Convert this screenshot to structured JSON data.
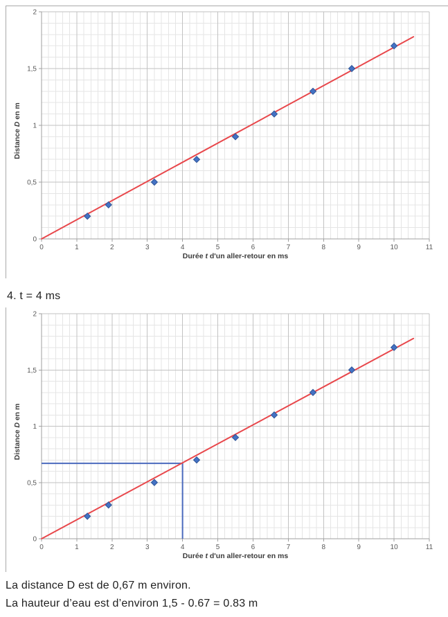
{
  "page": {
    "heading": "4. t = 4 ms",
    "caption_line1": "La distance D est de 0,67 m environ.",
    "caption_line2": "La hauteur d’eau est d’environ 1,5 - 0.67 = 0.83 m"
  },
  "chart_data": [
    {
      "type": "scatter",
      "title": "",
      "xlabel": {
        "pre": "Durée ",
        "em": "t",
        "post": " d'un aller-retour en ms"
      },
      "ylabel": {
        "pre": "Distance ",
        "em": "D",
        "post": " en m"
      },
      "xlim": [
        0,
        11
      ],
      "ylim": [
        0,
        2
      ],
      "x_major": 1,
      "x_minor": 0.2,
      "y_major": 0.5,
      "y_minor": 0.1,
      "x_ticks": [
        "0",
        "1",
        "2",
        "3",
        "4",
        "5",
        "6",
        "7",
        "8",
        "9",
        "10",
        "11"
      ],
      "y_ticks": [
        "0",
        "0,5",
        "1",
        "1,5",
        "2"
      ],
      "grid": "on",
      "legend": "none",
      "points": [
        [
          1.3,
          0.2
        ],
        [
          1.9,
          0.3
        ],
        [
          3.2,
          0.5
        ],
        [
          4.4,
          0.7
        ],
        [
          5.5,
          0.9
        ],
        [
          6.6,
          1.1
        ],
        [
          7.7,
          1.3
        ],
        [
          8.8,
          1.5
        ],
        [
          10,
          1.7
        ]
      ],
      "trendline": {
        "x1": 0,
        "y1": 0,
        "x2": 10.55,
        "y2": 1.78
      },
      "annotation": null,
      "colors": {
        "marker": "#4472c4",
        "marker_edge": "#2f5597",
        "trend": "#e8474b",
        "grid_major": "#c2c2c2",
        "grid_minor": "#e5e5e5",
        "axis": "#9f9f9f",
        "tick_label": "#595959",
        "axis_title": "#3b3b3b"
      }
    },
    {
      "type": "scatter",
      "title": "",
      "xlabel": {
        "pre": "Durée ",
        "em": "t",
        "post": " d'un aller-retour en ms"
      },
      "ylabel": {
        "pre": "Distance ",
        "em": "D",
        "post": " en m"
      },
      "xlim": [
        0,
        11
      ],
      "ylim": [
        0,
        2
      ],
      "x_major": 1,
      "x_minor": 0.2,
      "y_major": 0.5,
      "y_minor": 0.1,
      "x_ticks": [
        "0",
        "1",
        "2",
        "3",
        "4",
        "5",
        "6",
        "7",
        "8",
        "9",
        "10",
        "11"
      ],
      "y_ticks": [
        "0",
        "0,5",
        "1",
        "1,5",
        "2"
      ],
      "grid": "on",
      "legend": "none",
      "points": [
        [
          1.3,
          0.2
        ],
        [
          1.9,
          0.3
        ],
        [
          3.2,
          0.5
        ],
        [
          4.4,
          0.7
        ],
        [
          5.5,
          0.9
        ],
        [
          6.6,
          1.1
        ],
        [
          7.7,
          1.3
        ],
        [
          8.8,
          1.5
        ],
        [
          10,
          1.7
        ]
      ],
      "trendline": {
        "x1": 0,
        "y1": 0,
        "x2": 10.55,
        "y2": 1.78
      },
      "annotation": {
        "x": 4,
        "y": 0.67,
        "color": "#4a69bd"
      },
      "colors": {
        "marker": "#4472c4",
        "marker_edge": "#2f5597",
        "trend": "#e8474b",
        "grid_major": "#c2c2c2",
        "grid_minor": "#e5e5e5",
        "axis": "#9f9f9f",
        "tick_label": "#595959",
        "axis_title": "#3b3b3b"
      }
    }
  ]
}
